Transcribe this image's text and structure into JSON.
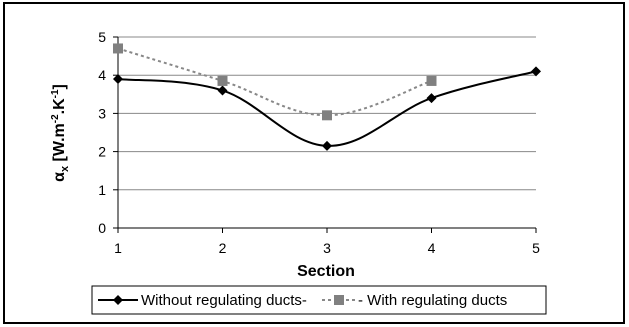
{
  "chart_data": {
    "type": "line",
    "title": "",
    "xlabel": "Section",
    "ylabel": "αx [W.m-2.K-1]",
    "ylabel_parts": {
      "alpha": "α",
      "sub": "x",
      "unit_a": " [W.m",
      "sup_a": "-2",
      "unit_b": ".K",
      "sup_b": "-1",
      "close": "]"
    },
    "x": [
      1,
      2,
      3,
      4,
      5
    ],
    "xlim": [
      1,
      5
    ],
    "ylim": [
      0,
      5
    ],
    "yticks": [
      0,
      1,
      2,
      3,
      4,
      5
    ],
    "grid": true,
    "legend_position": "bottom",
    "series": [
      {
        "name": "Without regulating ducts",
        "values": [
          3.9,
          3.6,
          2.15,
          3.4,
          4.1
        ],
        "color": "#000000",
        "style": "solid",
        "marker": "diamond"
      },
      {
        "name": "With regulating ducts",
        "values": [
          4.7,
          3.85,
          2.95,
          3.85,
          null
        ],
        "color": "#808080",
        "style": "dotted",
        "marker": "square"
      }
    ],
    "legend_labels": [
      "Without regulating ducts-",
      "- With regulating ducts"
    ]
  }
}
